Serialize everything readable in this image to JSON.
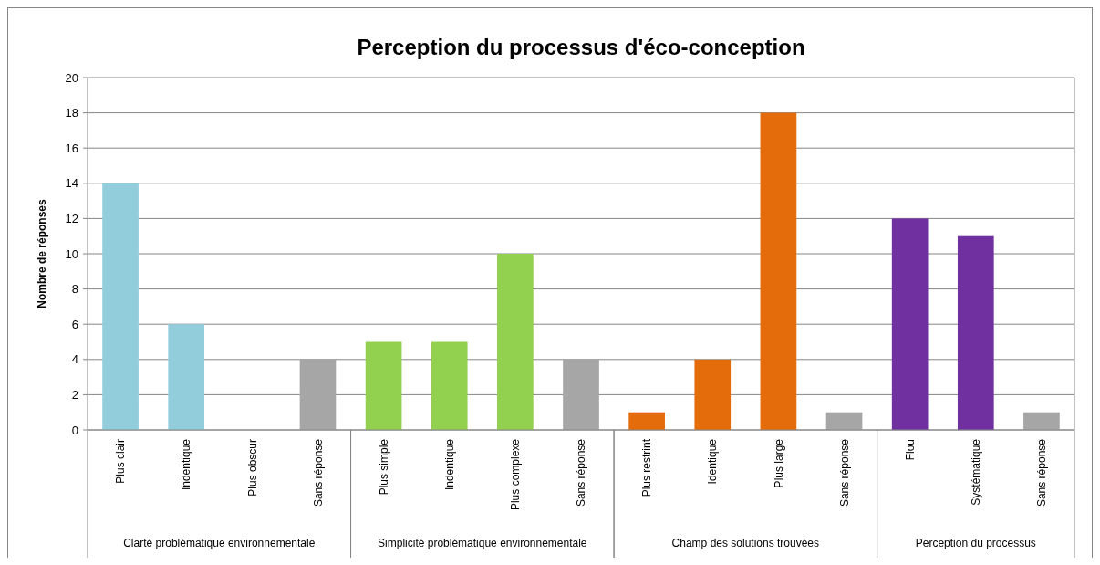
{
  "chart_data": {
    "type": "bar",
    "title": "Perception du processus d'éco-conception",
    "ylabel": "Nombre de réponses",
    "categories": [
      "Plus clair",
      "Indentique",
      "Plus obscur",
      "Sans réponse",
      "Plus simple",
      "Indentique",
      "Plus complexe",
      "Sans réponse",
      "Plus restrint",
      "Identique",
      "Plus large",
      "Sans réponse",
      "Flou",
      "Systématique",
      "Sans réponse"
    ],
    "values": [
      14,
      6,
      0,
      4,
      5,
      5,
      10,
      4,
      1,
      4,
      18,
      1,
      12,
      11,
      1
    ],
    "colors": [
      "#92cddc",
      "#92cddc",
      "#92cddc",
      "#a6a6a6",
      "#92d050",
      "#92d050",
      "#92d050",
      "#a6a6a6",
      "#e46c0a",
      "#e46c0a",
      "#e46c0a",
      "#a6a6a6",
      "#7030a0",
      "#7030a0",
      "#a6a6a6"
    ],
    "annotations": [
      "Clarté problématique environnementale",
      "Simplicité problématique environnementale",
      "Champ des solutions trouvées",
      "Perception du processus"
    ],
    "ylim": [
      0,
      20
    ],
    "yticks": [
      0,
      2,
      4,
      6,
      8,
      10,
      12,
      14,
      16,
      18,
      20
    ],
    "grid": "y"
  }
}
